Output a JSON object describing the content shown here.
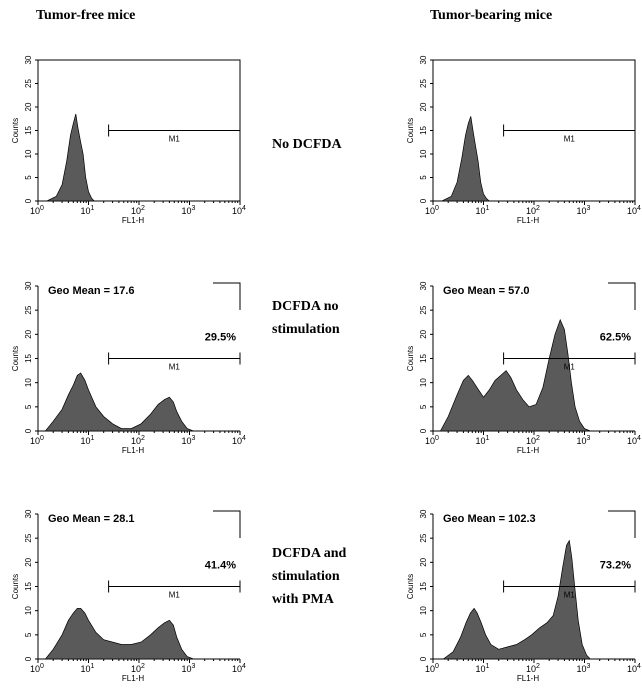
{
  "column_titles": [
    "Tumor-free mice",
    "Tumor-bearing mice"
  ],
  "row_labels": [
    [
      "No DCFDA"
    ],
    [
      "DCFDA no",
      "stimulation"
    ],
    [
      "DCFDA and",
      "stimulation",
      "with PMA"
    ]
  ],
  "axis": {
    "xlabel": "FL1-H",
    "ylabel": "Counts",
    "xticks": [
      "10",
      "10",
      "10",
      "10",
      "10"
    ],
    "xtick_exponents": [
      "0",
      "1",
      "2",
      "3",
      "4"
    ],
    "yticks": [
      "0",
      "5",
      "10",
      "15",
      "20",
      "25",
      "30"
    ]
  },
  "colors": {
    "fill": "#5a5a5a",
    "stroke": "#000000"
  },
  "chart_data": [
    {
      "type": "area",
      "id": "free-nodcfda",
      "panel": "Tumor-free mice / No DCFDA",
      "xlabel": "FL1-H",
      "ylabel": "Counts",
      "xscale": "log",
      "xlim": [
        1,
        10000
      ],
      "ylim": [
        0,
        30
      ],
      "gate": {
        "label": "M1",
        "from": 25,
        "to": 10000,
        "level": 15
      },
      "geo_mean": "",
      "percent": "",
      "x": [
        1.5,
        2.3,
        3,
        3.7,
        4.4,
        5,
        5.6,
        6.2,
        7,
        7.8,
        8.8,
        10,
        11.5,
        13
      ],
      "y": [
        0,
        1,
        3.5,
        8.5,
        14,
        16.5,
        18.5,
        15.5,
        12.5,
        10,
        5,
        2,
        0.6,
        0
      ]
    },
    {
      "type": "area",
      "id": "bearing-nodcfda",
      "panel": "Tumor-bearing mice / No DCFDA",
      "xlabel": "FL1-H",
      "ylabel": "Counts",
      "xscale": "log",
      "xlim": [
        1,
        10000
      ],
      "ylim": [
        0,
        30
      ],
      "gate": {
        "label": "M1",
        "from": 25,
        "to": 10000,
        "level": 15
      },
      "geo_mean": "",
      "percent": "",
      "x": [
        1.5,
        2.3,
        3,
        3.7,
        4.4,
        5,
        5.6,
        6.2,
        7,
        7.8,
        8.8,
        10,
        11.5,
        13
      ],
      "y": [
        0,
        1,
        4,
        9,
        14,
        16.5,
        18,
        15,
        11.5,
        8.5,
        4,
        1.5,
        0.5,
        0
      ]
    },
    {
      "type": "area",
      "id": "free-dcfda-nostim",
      "panel": "Tumor-free mice / DCFDA no stimulation",
      "xlabel": "FL1-H",
      "ylabel": "Counts",
      "xscale": "log",
      "xlim": [
        1,
        10000
      ],
      "ylim": [
        0,
        30
      ],
      "gate": {
        "label": "M1",
        "from": 25,
        "to": 10000,
        "level": 15
      },
      "geo_mean": "Geo Mean = 17.6",
      "percent": "29.5%",
      "x": [
        1.4,
        2,
        3,
        4,
        5,
        6,
        7,
        8.5,
        10,
        14,
        20,
        30,
        45,
        70,
        110,
        170,
        240,
        320,
        400,
        480,
        560,
        700,
        900,
        1200
      ],
      "y": [
        0,
        2,
        4.5,
        7.5,
        9.5,
        11.5,
        12,
        10.5,
        8.5,
        5,
        3,
        1.5,
        0.5,
        0.5,
        1.5,
        3.5,
        5.5,
        6.5,
        7,
        6,
        4,
        2,
        0.5,
        0
      ]
    },
    {
      "type": "area",
      "id": "bearing-dcfda-nostim",
      "panel": "Tumor-bearing mice / DCFDA no stimulation",
      "xlabel": "FL1-H",
      "ylabel": "Counts",
      "xscale": "log",
      "xlim": [
        1,
        10000
      ],
      "ylim": [
        0,
        30
      ],
      "gate": {
        "label": "M1",
        "from": 25,
        "to": 10000,
        "level": 15
      },
      "geo_mean": "Geo Mean = 57.0",
      "percent": "62.5%",
      "x": [
        1.4,
        2,
        3,
        4,
        5,
        6,
        8,
        10,
        13,
        17,
        22,
        28,
        35,
        45,
        60,
        80,
        110,
        150,
        200,
        260,
        330,
        400,
        470,
        550,
        650,
        800,
        1000,
        1300
      ],
      "y": [
        0,
        3,
        7.5,
        10.5,
        11.5,
        10.5,
        8.5,
        7,
        8.5,
        10.5,
        11.5,
        12.5,
        11,
        8.5,
        6.5,
        5,
        5.5,
        9,
        15,
        20,
        23,
        21,
        16,
        10,
        5,
        2,
        0.5,
        0
      ]
    },
    {
      "type": "area",
      "id": "free-dcfda-pma",
      "panel": "Tumor-free mice / DCFDA and stimulation with PMA",
      "xlabel": "FL1-H",
      "ylabel": "Counts",
      "xscale": "log",
      "xlim": [
        1,
        10000
      ],
      "ylim": [
        0,
        30
      ],
      "gate": {
        "label": "M1",
        "from": 25,
        "to": 10000,
        "level": 15
      },
      "geo_mean": "Geo Mean = 28.1",
      "percent": "41.4%",
      "x": [
        1.4,
        2,
        3,
        4,
        5,
        6,
        7,
        8.5,
        10,
        14,
        20,
        30,
        45,
        70,
        110,
        170,
        240,
        320,
        400,
        480,
        560,
        700,
        900,
        1200
      ],
      "y": [
        0,
        2,
        5,
        8,
        9.5,
        10.5,
        10.5,
        9.5,
        8,
        5.5,
        4,
        3.5,
        3,
        3,
        3.5,
        5,
        6.5,
        7.5,
        8,
        7,
        4.5,
        2,
        0.5,
        0
      ]
    },
    {
      "type": "area",
      "id": "bearing-dcfda-pma",
      "panel": "Tumor-bearing mice / DCFDA and stimulation with PMA",
      "xlabel": "FL1-H",
      "ylabel": "Counts",
      "xscale": "log",
      "xlim": [
        1,
        10000
      ],
      "ylim": [
        0,
        30
      ],
      "gate": {
        "label": "M1",
        "from": 25,
        "to": 10000,
        "level": 15
      },
      "geo_mean": "Geo Mean = 102.3",
      "percent": "73.2%",
      "x": [
        1.6,
        2.5,
        3.5,
        4.5,
        5.5,
        6.5,
        7.5,
        9,
        11,
        14,
        20,
        30,
        45,
        65,
        90,
        130,
        180,
        240,
        300,
        370,
        440,
        500,
        560,
        640,
        750,
        900,
        1100,
        1300
      ],
      "y": [
        0,
        1.5,
        4.5,
        7.5,
        9.5,
        10.5,
        9.5,
        7.5,
        5,
        3,
        2,
        2.5,
        3,
        4,
        5,
        6.5,
        7.5,
        9,
        13,
        19,
        23.5,
        24.5,
        21,
        15,
        8,
        3,
        0.8,
        0
      ]
    }
  ]
}
